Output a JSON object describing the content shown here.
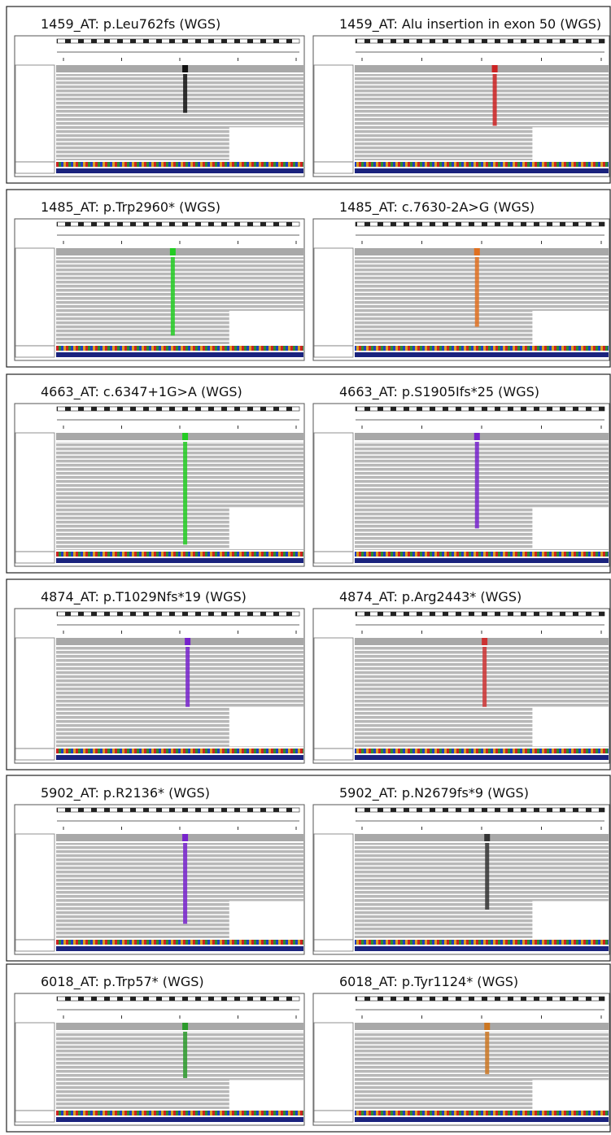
{
  "panels": [
    {
      "titles": [
        "1459_AT: p.Leu762fs (WGS)",
        "1459_AT: Alu insertion in exon 50 (WGS)"
      ]
    },
    {
      "titles": [
        "1485_AT: p.Trp2960* (WGS)",
        "1485_AT: c.7630-2A>G (WGS)"
      ]
    },
    {
      "titles": [
        "4663_AT: c.6347+1G>A (WGS)",
        "4663_AT: p.S1905Ifs*25 (WGS)"
      ]
    },
    {
      "titles": [
        "4874_AT: p.T1029Nfs*19 (WGS)",
        "4874_AT: p.Arg2443* (WGS)"
      ]
    },
    {
      "titles": [
        "5902_AT: p.R2136* (WGS)",
        "5902_AT: p.N2679fs*9 (WGS)"
      ]
    },
    {
      "titles": [
        "6018_AT: p.Trp57* (WGS)",
        "6018_AT: p.Tyr1124* (WGS)"
      ]
    }
  ]
}
